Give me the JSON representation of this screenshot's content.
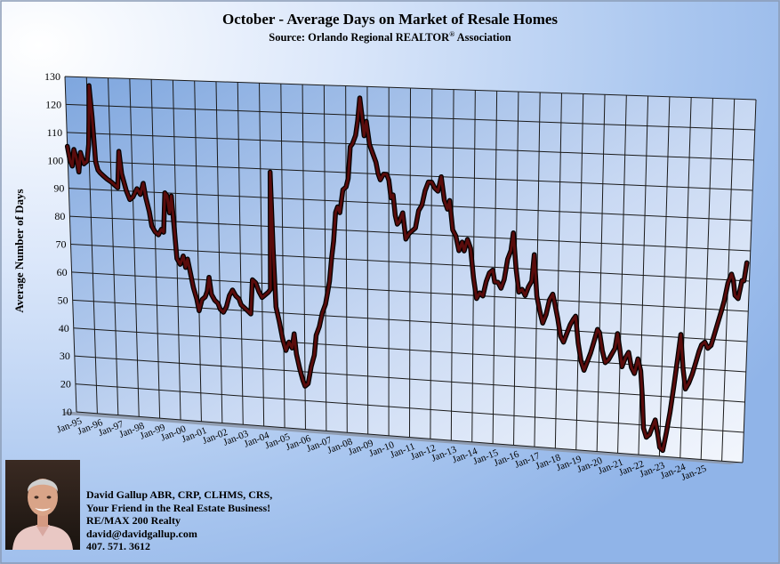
{
  "chart_data": {
    "type": "line",
    "title": "October - Average Days on Market of Resale Homes",
    "subtitle_main": "Source: Orlando Regional REALTOR",
    "subtitle_sup": "®",
    "subtitle_tail": " Association",
    "xlabel": "",
    "ylabel": "Average  Number of Days",
    "ylim": [
      10,
      130
    ],
    "y_ticks": [
      10,
      20,
      30,
      40,
      50,
      60,
      70,
      80,
      90,
      100,
      110,
      120,
      130
    ],
    "x_tick_labels": [
      "Jan-95",
      "Jan-96",
      "Jan-97",
      "Jan-98",
      "Jan-99",
      "Jan-00",
      "Jan-01",
      "Jan-02",
      "Jan-03",
      "Jan-04",
      "Jan-05",
      "Jan-06",
      "Jan-07",
      "Jan-08",
      "Jan-09",
      "Jan-10",
      "Jan-11",
      "Jan-12",
      "Jan-13",
      "Jan-14",
      "Jan-15",
      "Jan-16",
      "Jan-17",
      "Jan-18",
      "Jan-19",
      "Jan-20",
      "Jan-21",
      "Jan-22",
      "Jan-23",
      "Jan-24",
      "Jan-25"
    ],
    "grid": true,
    "legend": "none",
    "line_color": "#5a0c0c",
    "series": [
      {
        "values": [
          [
            1995.0,
            105
          ],
          [
            1995.1,
            100
          ],
          [
            1995.2,
            98
          ],
          [
            1995.3,
            104
          ],
          [
            1995.4,
            101
          ],
          [
            1995.5,
            96
          ],
          [
            1995.6,
            103
          ],
          [
            1995.75,
            99
          ],
          [
            1995.9,
            100
          ],
          [
            1996.0,
            106
          ],
          [
            1996.05,
            115
          ],
          [
            1996.1,
            127
          ],
          [
            1996.2,
            116
          ],
          [
            1996.3,
            100
          ],
          [
            1996.4,
            97
          ],
          [
            1996.5,
            96
          ],
          [
            1996.65,
            95
          ],
          [
            1996.8,
            94
          ],
          [
            1997.0,
            93
          ],
          [
            1997.15,
            92
          ],
          [
            1997.3,
            91
          ],
          [
            1997.4,
            104
          ],
          [
            1997.5,
            96
          ],
          [
            1997.7,
            90
          ],
          [
            1997.85,
            87
          ],
          [
            1998.0,
            88
          ],
          [
            1998.2,
            91
          ],
          [
            1998.35,
            89
          ],
          [
            1998.5,
            93
          ],
          [
            1998.6,
            88
          ],
          [
            1998.75,
            83
          ],
          [
            1998.85,
            78
          ],
          [
            1999.0,
            76
          ],
          [
            1999.15,
            75
          ],
          [
            1999.3,
            77
          ],
          [
            1999.4,
            76
          ],
          [
            1999.5,
            90
          ],
          [
            1999.6,
            89
          ],
          [
            1999.7,
            83
          ],
          [
            1999.8,
            89
          ],
          [
            1999.9,
            78
          ],
          [
            2000.0,
            67
          ],
          [
            2000.15,
            65
          ],
          [
            2000.3,
            68
          ],
          [
            2000.4,
            64
          ],
          [
            2000.5,
            67
          ],
          [
            2000.6,
            63
          ],
          [
            2000.75,
            57
          ],
          [
            2000.9,
            53
          ],
          [
            2001.0,
            49
          ],
          [
            2001.15,
            53
          ],
          [
            2001.3,
            54
          ],
          [
            2001.4,
            56
          ],
          [
            2001.5,
            61
          ],
          [
            2001.6,
            55
          ],
          [
            2001.75,
            53
          ],
          [
            2001.9,
            52
          ],
          [
            2002.0,
            50
          ],
          [
            2002.15,
            49
          ],
          [
            2002.3,
            51
          ],
          [
            2002.45,
            55
          ],
          [
            2002.6,
            57
          ],
          [
            2002.75,
            55
          ],
          [
            2002.9,
            54
          ],
          [
            2003.0,
            52
          ],
          [
            2003.15,
            51
          ],
          [
            2003.3,
            50
          ],
          [
            2003.45,
            49
          ],
          [
            2003.55,
            61
          ],
          [
            2003.7,
            60
          ],
          [
            2003.85,
            57
          ],
          [
            2004.0,
            55
          ],
          [
            2004.15,
            56
          ],
          [
            2004.3,
            57
          ],
          [
            2004.4,
            58
          ],
          [
            2004.45,
            99
          ],
          [
            2004.55,
            72
          ],
          [
            2004.65,
            52
          ],
          [
            2004.8,
            47
          ],
          [
            2004.95,
            41
          ],
          [
            2005.1,
            37
          ],
          [
            2005.25,
            40
          ],
          [
            2005.4,
            38
          ],
          [
            2005.5,
            43
          ],
          [
            2005.6,
            36
          ],
          [
            2005.75,
            31
          ],
          [
            2005.9,
            27
          ],
          [
            2006.0,
            25
          ],
          [
            2006.15,
            26
          ],
          [
            2006.3,
            32
          ],
          [
            2006.45,
            36
          ],
          [
            2006.55,
            43
          ],
          [
            2006.7,
            46
          ],
          [
            2006.85,
            51
          ],
          [
            2007.0,
            54
          ],
          [
            2007.1,
            58
          ],
          [
            2007.2,
            62
          ],
          [
            2007.3,
            70
          ],
          [
            2007.4,
            76
          ],
          [
            2007.5,
            86
          ],
          [
            2007.6,
            88
          ],
          [
            2007.7,
            86
          ],
          [
            2007.85,
            94
          ],
          [
            2008.0,
            95
          ],
          [
            2008.1,
            98
          ],
          [
            2008.2,
            109
          ],
          [
            2008.3,
            110
          ],
          [
            2008.45,
            113
          ],
          [
            2008.55,
            118
          ],
          [
            2008.65,
            126
          ],
          [
            2008.75,
            120
          ],
          [
            2008.85,
            113
          ],
          [
            2008.95,
            118
          ],
          [
            2009.1,
            110
          ],
          [
            2009.25,
            107
          ],
          [
            2009.4,
            104
          ],
          [
            2009.5,
            100
          ],
          [
            2009.6,
            98
          ],
          [
            2009.75,
            100
          ],
          [
            2009.9,
            100
          ],
          [
            2010.0,
            98
          ],
          [
            2010.1,
            92
          ],
          [
            2010.2,
            93
          ],
          [
            2010.3,
            86
          ],
          [
            2010.4,
            83
          ],
          [
            2010.5,
            84
          ],
          [
            2010.65,
            87
          ],
          [
            2010.8,
            78
          ],
          [
            2010.95,
            80
          ],
          [
            2011.1,
            81
          ],
          [
            2011.25,
            82
          ],
          [
            2011.4,
            88
          ],
          [
            2011.55,
            90
          ],
          [
            2011.7,
            95
          ],
          [
            2011.85,
            98
          ],
          [
            2012.0,
            98
          ],
          [
            2012.15,
            96
          ],
          [
            2012.3,
            95
          ],
          [
            2012.45,
            100
          ],
          [
            2012.6,
            92
          ],
          [
            2012.75,
            89
          ],
          [
            2012.85,
            92
          ],
          [
            2013.0,
            82
          ],
          [
            2013.15,
            80
          ],
          [
            2013.3,
            75
          ],
          [
            2013.45,
            78
          ],
          [
            2013.55,
            75
          ],
          [
            2013.7,
            79
          ],
          [
            2013.85,
            76
          ],
          [
            2014.0,
            66
          ],
          [
            2014.15,
            59
          ],
          [
            2014.3,
            61
          ],
          [
            2014.45,
            60
          ],
          [
            2014.6,
            65
          ],
          [
            2014.75,
            68
          ],
          [
            2014.9,
            69
          ],
          [
            2015.0,
            65
          ],
          [
            2015.15,
            65
          ],
          [
            2015.3,
            63
          ],
          [
            2015.45,
            66
          ],
          [
            2015.6,
            73
          ],
          [
            2015.75,
            76
          ],
          [
            2015.85,
            82
          ],
          [
            2016.0,
            70
          ],
          [
            2016.15,
            62
          ],
          [
            2016.3,
            63
          ],
          [
            2016.45,
            61
          ],
          [
            2016.6,
            64
          ],
          [
            2016.75,
            66
          ],
          [
            2016.85,
            75
          ],
          [
            2017.0,
            61
          ],
          [
            2017.15,
            56
          ],
          [
            2017.3,
            52
          ],
          [
            2017.45,
            55
          ],
          [
            2017.6,
            60
          ],
          [
            2017.75,
            62
          ],
          [
            2017.85,
            59
          ],
          [
            2018.0,
            54
          ],
          [
            2018.15,
            48
          ],
          [
            2018.3,
            46
          ],
          [
            2018.45,
            49
          ],
          [
            2018.6,
            52
          ],
          [
            2018.75,
            54
          ],
          [
            2018.85,
            55
          ],
          [
            2019.0,
            46
          ],
          [
            2019.15,
            40
          ],
          [
            2019.3,
            37
          ],
          [
            2019.45,
            40
          ],
          [
            2019.6,
            43
          ],
          [
            2019.75,
            47
          ],
          [
            2019.9,
            51
          ],
          [
            2020.0,
            50
          ],
          [
            2020.15,
            44
          ],
          [
            2020.3,
            40
          ],
          [
            2020.45,
            41
          ],
          [
            2020.6,
            43
          ],
          [
            2020.75,
            45
          ],
          [
            2020.85,
            50
          ],
          [
            2021.0,
            44
          ],
          [
            2021.1,
            39
          ],
          [
            2021.25,
            42
          ],
          [
            2021.4,
            44
          ],
          [
            2021.55,
            39
          ],
          [
            2021.7,
            37
          ],
          [
            2021.85,
            42
          ],
          [
            2022.0,
            38
          ],
          [
            2022.1,
            30
          ],
          [
            2022.2,
            19
          ],
          [
            2022.35,
            16
          ],
          [
            2022.5,
            17
          ],
          [
            2022.6,
            19
          ],
          [
            2022.75,
            22
          ],
          [
            2022.9,
            17
          ],
          [
            2023.0,
            13
          ],
          [
            2023.15,
            12
          ],
          [
            2023.3,
            18
          ],
          [
            2023.45,
            25
          ],
          [
            2023.6,
            34
          ],
          [
            2023.75,
            44
          ],
          [
            2023.85,
            51
          ],
          [
            2024.0,
            40
          ],
          [
            2024.15,
            33
          ],
          [
            2024.3,
            35
          ],
          [
            2024.45,
            38
          ],
          [
            2024.6,
            42
          ],
          [
            2024.75,
            46
          ],
          [
            2024.85,
            48
          ],
          [
            2025.0,
            49
          ],
          [
            2025.15,
            47
          ],
          [
            2025.3,
            48
          ],
          [
            2025.45,
            52
          ],
          [
            2025.6,
            56
          ],
          [
            2025.75,
            60
          ],
          [
            2025.85,
            63
          ],
          [
            2026.0,
            69
          ],
          [
            2026.15,
            72
          ],
          [
            2026.25,
            70
          ],
          [
            2026.35,
            65
          ],
          [
            2026.5,
            64
          ],
          [
            2026.65,
            70
          ],
          [
            2026.75,
            70
          ],
          [
            2026.85,
            76
          ]
        ]
      }
    ]
  },
  "contact": {
    "line1": "David Gallup  ABR, CRP, CLHMS, CRS,",
    "line2": "Your Friend in the Real Estate Business!",
    "line3": "RE/MAX 200 Realty",
    "line4": "david@davidgallup.com",
    "line5": "407. 571. 3612"
  }
}
